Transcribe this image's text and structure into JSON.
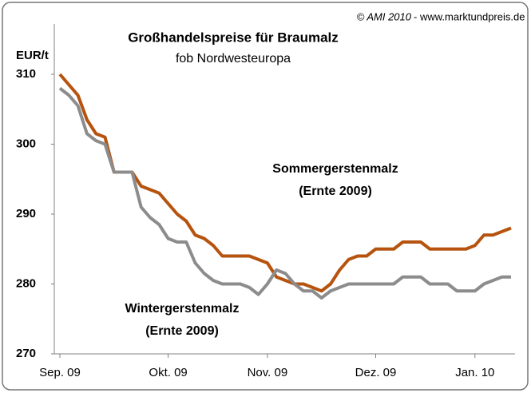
{
  "chart_data": {
    "type": "line",
    "title": "Großhandelspreise für Braumalz",
    "subtitle": "fob Nordwesteuropa",
    "copyright": "© AMI 2010",
    "source": "- www.marktundpreis.de",
    "y_label": "EUR/t",
    "categories": [
      "Sep. 09",
      null,
      null,
      null,
      null,
      null,
      null,
      null,
      null,
      null,
      null,
      null,
      "Okt. 09",
      null,
      null,
      null,
      null,
      null,
      null,
      null,
      null,
      null,
      null,
      "Nov. 09",
      null,
      null,
      null,
      null,
      null,
      null,
      null,
      null,
      null,
      null,
      null,
      "Dez. 09",
      null,
      null,
      null,
      null,
      null,
      null,
      null,
      null,
      null,
      null,
      "Jan. 10",
      null,
      null,
      null,
      null
    ],
    "series": [
      {
        "name": "Sommergerstenmalz (Ernte 2009)",
        "color": "#b5530f",
        "label_lines": [
          "Sommergerstenmalz",
          "(Ernte 2009)"
        ],
        "values": [
          310,
          308.5,
          307,
          303.5,
          301.5,
          301,
          296,
          296,
          296,
          294,
          293.5,
          293,
          291.5,
          290,
          289,
          287,
          286.5,
          285.5,
          284,
          284,
          284,
          284,
          283.5,
          283,
          281,
          280.5,
          280,
          280,
          279.5,
          279,
          280,
          282,
          283.5,
          284,
          284,
          285,
          285,
          285,
          286,
          286,
          286,
          285,
          285,
          285,
          285,
          285,
          285.5,
          287,
          287,
          287.5,
          288
        ]
      },
      {
        "name": "Wintergerstenmalz (Ernte 2009)",
        "color": "#8c8c8c",
        "label_lines": [
          "Wintergerstenmalz",
          "(Ernte 2009)"
        ],
        "values": [
          308,
          307,
          305.5,
          301.5,
          300.5,
          300,
          296,
          296,
          296,
          291,
          289.5,
          288.5,
          286.5,
          286,
          286,
          283,
          281.5,
          280.5,
          280,
          280,
          280,
          279.5,
          278.5,
          280,
          282,
          281.5,
          280,
          279,
          279,
          278,
          279,
          279.5,
          280,
          280,
          280,
          280,
          280,
          280,
          281,
          281,
          281,
          280,
          280,
          280,
          279,
          279,
          279,
          280,
          280.5,
          281,
          281
        ]
      }
    ],
    "ylim": [
      270,
      310
    ],
    "yticks": [
      270,
      280,
      290,
      300,
      310
    ],
    "grid": false
  }
}
